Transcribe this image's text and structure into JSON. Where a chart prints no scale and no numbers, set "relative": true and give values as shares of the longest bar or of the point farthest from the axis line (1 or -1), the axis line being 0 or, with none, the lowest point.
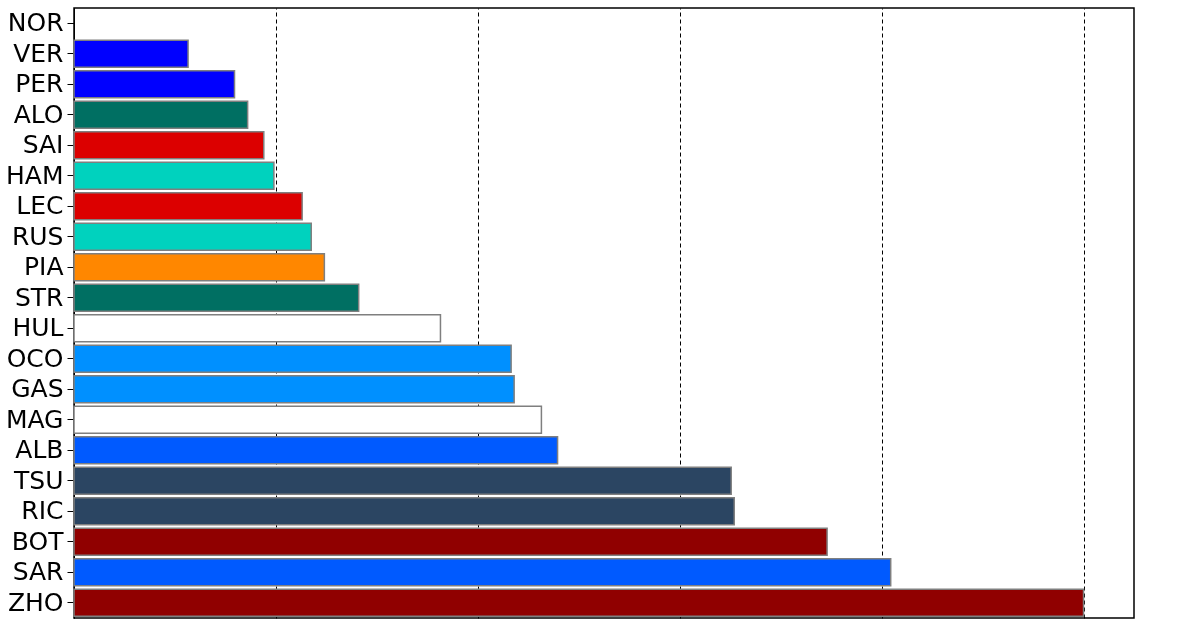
{
  "chart_data": {
    "type": "bar",
    "orientation": "horizontal",
    "relative": true,
    "grid": "x",
    "categories": [
      "NOR",
      "VER",
      "PER",
      "ALO",
      "SAI",
      "HAM",
      "LEC",
      "RUS",
      "PIA",
      "STR",
      "HUL",
      "OCO",
      "GAS",
      "MAG",
      "ALB",
      "TSU",
      "RIC",
      "BOT",
      "SAR",
      "ZHO"
    ],
    "values": [
      null,
      0.113,
      0.159,
      0.172,
      0.188,
      0.198,
      0.226,
      0.235,
      0.248,
      0.282,
      0.363,
      0.433,
      0.436,
      0.463,
      0.479,
      0.651,
      0.654,
      0.746,
      0.809,
      1
    ],
    "colors": [
      null,
      "#0000ff",
      "#0000ff",
      "#006f62",
      "#dc0000",
      "#00d2be",
      "#dc0000",
      "#00d2be",
      "#ff8700",
      "#006f62",
      "#ffffff",
      "#0090ff",
      "#0090ff",
      "#ffffff",
      "#005aff",
      "#2b4562",
      "#2b4562",
      "#900000",
      "#005aff",
      "#900000"
    ],
    "line_style": "dashed"
  }
}
